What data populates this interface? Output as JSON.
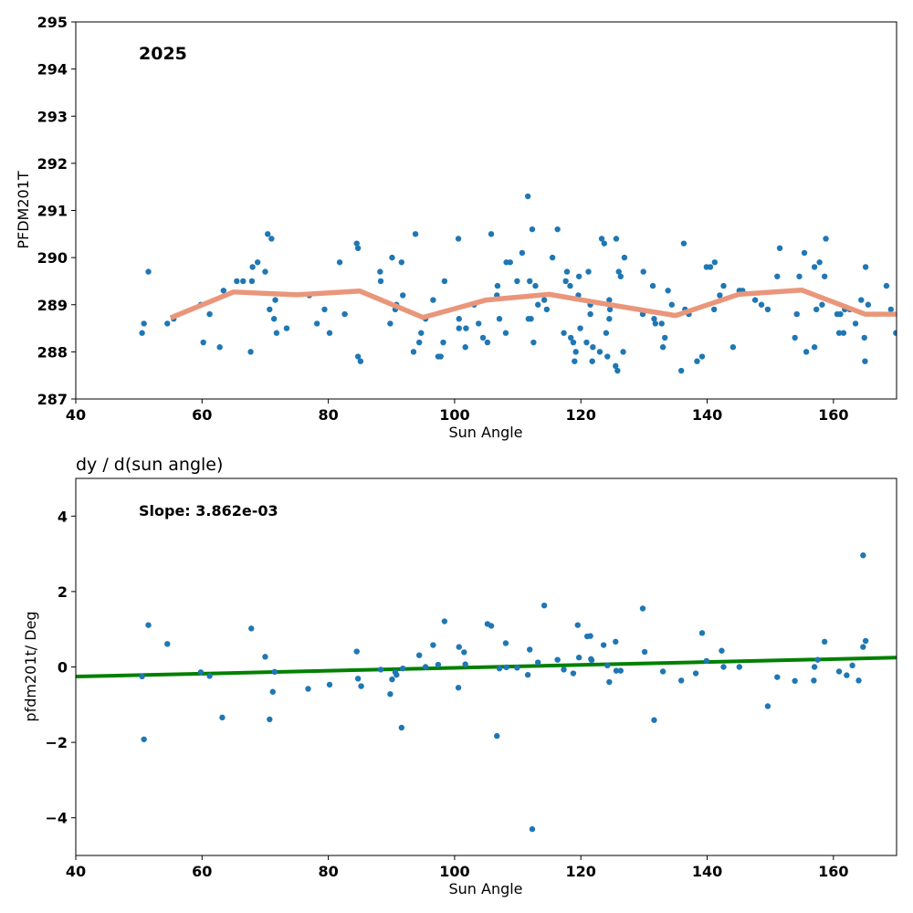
{
  "chart_data": [
    {
      "type": "scatter",
      "title": "",
      "annotation": "2025",
      "xlabel": "Sun Angle",
      "ylabel": "PFDM201T",
      "xlim": [
        40,
        170
      ],
      "ylim": [
        287,
        295
      ],
      "xticks": [
        40,
        60,
        80,
        100,
        120,
        140,
        160
      ],
      "yticks": [
        287,
        288,
        289,
        290,
        291,
        292,
        293,
        294,
        295
      ],
      "grid": false,
      "colors": {
        "points": "#1f77b4",
        "smooth_line": "#e9967a"
      },
      "points": [
        [
          50.5,
          288.4
        ],
        [
          50.8,
          288.6
        ],
        [
          51.5,
          289.7
        ],
        [
          54.5,
          288.6
        ],
        [
          55.5,
          288.7
        ],
        [
          59.8,
          289.0
        ],
        [
          60.2,
          288.2
        ],
        [
          61.2,
          288.8
        ],
        [
          62.8,
          288.1
        ],
        [
          63.4,
          289.3
        ],
        [
          65.5,
          289.5
        ],
        [
          66.5,
          289.5
        ],
        [
          67.7,
          288.0
        ],
        [
          67.9,
          289.5
        ],
        [
          68.0,
          289.8
        ],
        [
          68.8,
          289.9
        ],
        [
          70.0,
          289.7
        ],
        [
          70.4,
          290.5
        ],
        [
          70.7,
          288.9
        ],
        [
          71.0,
          290.4
        ],
        [
          71.4,
          288.7
        ],
        [
          71.6,
          289.1
        ],
        [
          71.8,
          288.4
        ],
        [
          73.4,
          288.5
        ],
        [
          77.0,
          289.2
        ],
        [
          78.2,
          288.6
        ],
        [
          79.4,
          288.9
        ],
        [
          80.2,
          288.4
        ],
        [
          81.8,
          289.9
        ],
        [
          82.6,
          288.8
        ],
        [
          84.5,
          290.3
        ],
        [
          84.7,
          290.2
        ],
        [
          84.7,
          287.9
        ],
        [
          85.1,
          287.8
        ],
        [
          88.2,
          289.7
        ],
        [
          88.3,
          289.5
        ],
        [
          89.8,
          288.6
        ],
        [
          90.1,
          290.0
        ],
        [
          90.6,
          288.9
        ],
        [
          90.8,
          289.0
        ],
        [
          91.6,
          289.9
        ],
        [
          91.8,
          289.2
        ],
        [
          93.5,
          288.0
        ],
        [
          93.8,
          290.5
        ],
        [
          94.4,
          288.2
        ],
        [
          94.7,
          288.4
        ],
        [
          95.4,
          288.7
        ],
        [
          96.6,
          289.1
        ],
        [
          97.4,
          287.9
        ],
        [
          97.8,
          287.9
        ],
        [
          98.2,
          288.2
        ],
        [
          98.4,
          289.5
        ],
        [
          100.6,
          290.4
        ],
        [
          100.7,
          288.7
        ],
        [
          100.7,
          288.5
        ],
        [
          101.7,
          288.1
        ],
        [
          101.8,
          288.5
        ],
        [
          103.1,
          289.0
        ],
        [
          103.8,
          288.6
        ],
        [
          104.5,
          288.3
        ],
        [
          105.2,
          288.2
        ],
        [
          105.8,
          290.5
        ],
        [
          106.7,
          289.2
        ],
        [
          106.8,
          289.4
        ],
        [
          107.1,
          288.7
        ],
        [
          108.1,
          288.4
        ],
        [
          108.2,
          289.9
        ],
        [
          108.8,
          289.9
        ],
        [
          109.9,
          289.5
        ],
        [
          110.7,
          290.1
        ],
        [
          111.6,
          291.3
        ],
        [
          111.7,
          288.7
        ],
        [
          111.9,
          289.5
        ],
        [
          112.1,
          288.7
        ],
        [
          112.3,
          290.6
        ],
        [
          112.5,
          288.2
        ],
        [
          112.8,
          289.4
        ],
        [
          113.2,
          289.0
        ],
        [
          114.2,
          289.1
        ],
        [
          114.6,
          288.9
        ],
        [
          115.5,
          290.0
        ],
        [
          116.3,
          290.6
        ],
        [
          117.3,
          288.4
        ],
        [
          117.6,
          289.5
        ],
        [
          117.8,
          289.7
        ],
        [
          118.3,
          289.4
        ],
        [
          118.4,
          288.3
        ],
        [
          118.8,
          288.2
        ],
        [
          119.0,
          287.8
        ],
        [
          119.2,
          288.0
        ],
        [
          119.6,
          289.2
        ],
        [
          119.7,
          289.6
        ],
        [
          119.9,
          288.5
        ],
        [
          120.9,
          288.2
        ],
        [
          121.2,
          289.7
        ],
        [
          121.5,
          288.8
        ],
        [
          121.5,
          289.0
        ],
        [
          121.8,
          287.8
        ],
        [
          121.9,
          288.1
        ],
        [
          123.0,
          288.0
        ],
        [
          123.3,
          290.4
        ],
        [
          123.7,
          290.3
        ],
        [
          124.0,
          288.4
        ],
        [
          124.2,
          287.9
        ],
        [
          124.5,
          289.1
        ],
        [
          124.5,
          288.7
        ],
        [
          124.6,
          288.9
        ],
        [
          125.5,
          287.7
        ],
        [
          125.6,
          290.4
        ],
        [
          125.8,
          287.6
        ],
        [
          126.0,
          289.7
        ],
        [
          126.3,
          289.6
        ],
        [
          126.7,
          288.0
        ],
        [
          126.9,
          290.0
        ],
        [
          129.8,
          288.8
        ],
        [
          129.9,
          289.7
        ],
        [
          131.4,
          289.4
        ],
        [
          131.6,
          288.7
        ],
        [
          131.8,
          288.6
        ],
        [
          132.8,
          288.6
        ],
        [
          133.0,
          288.1
        ],
        [
          133.3,
          288.3
        ],
        [
          133.8,
          289.3
        ],
        [
          134.4,
          289.0
        ],
        [
          135.9,
          287.6
        ],
        [
          136.3,
          290.3
        ],
        [
          136.5,
          288.9
        ],
        [
          137.1,
          288.8
        ],
        [
          138.4,
          287.8
        ],
        [
          139.2,
          287.9
        ],
        [
          139.9,
          289.8
        ],
        [
          140.5,
          289.8
        ],
        [
          141.1,
          288.9
        ],
        [
          141.2,
          289.9
        ],
        [
          142.0,
          289.2
        ],
        [
          142.6,
          289.4
        ],
        [
          144.1,
          288.1
        ],
        [
          145.1,
          289.3
        ],
        [
          145.6,
          289.3
        ],
        [
          147.6,
          289.1
        ],
        [
          148.6,
          289.0
        ],
        [
          149.6,
          288.9
        ],
        [
          151.1,
          289.6
        ],
        [
          151.5,
          290.2
        ],
        [
          153.9,
          288.3
        ],
        [
          154.2,
          288.8
        ],
        [
          154.6,
          289.6
        ],
        [
          155.4,
          290.1
        ],
        [
          155.7,
          288.0
        ],
        [
          157.0,
          288.1
        ],
        [
          157.0,
          289.8
        ],
        [
          157.3,
          288.9
        ],
        [
          157.8,
          289.9
        ],
        [
          158.2,
          289.0
        ],
        [
          158.6,
          289.6
        ],
        [
          158.8,
          290.4
        ],
        [
          160.6,
          288.8
        ],
        [
          160.9,
          288.4
        ],
        [
          161.1,
          288.8
        ],
        [
          161.6,
          288.4
        ],
        [
          161.8,
          288.9
        ],
        [
          162.6,
          288.9
        ],
        [
          163.5,
          288.6
        ],
        [
          164.4,
          289.1
        ],
        [
          164.9,
          288.3
        ],
        [
          165.0,
          287.8
        ],
        [
          165.1,
          289.8
        ],
        [
          165.5,
          289.0
        ],
        [
          168.4,
          289.4
        ],
        [
          169.1,
          288.9
        ],
        [
          169.9,
          288.4
        ]
      ],
      "smooth_line": [
        [
          55,
          288.72
        ],
        [
          65,
          289.27
        ],
        [
          75,
          289.21
        ],
        [
          85,
          289.29
        ],
        [
          95,
          288.73
        ],
        [
          105,
          289.1
        ],
        [
          115,
          289.22
        ],
        [
          125,
          288.99
        ],
        [
          135,
          288.77
        ],
        [
          145,
          289.22
        ],
        [
          155,
          289.31
        ],
        [
          165,
          288.8
        ],
        [
          170,
          288.8
        ]
      ]
    },
    {
      "type": "scatter",
      "title": "dy / d(sun angle)",
      "annotation": "Slope: 3.862e-03",
      "xlabel": "Sun Angle",
      "ylabel": "pfdm201t/ Deg",
      "xlim": [
        40,
        170
      ],
      "ylim": [
        -5,
        5
      ],
      "xticks": [
        40,
        60,
        80,
        100,
        120,
        140,
        160
      ],
      "yticks": [
        -4,
        -2,
        0,
        2,
        4
      ],
      "ytick_labels": [
        "−4",
        "−2",
        "0",
        "2",
        "4"
      ],
      "grid": false,
      "colors": {
        "points": "#1f77b4",
        "fit_line": "#008000"
      },
      "fit_line": [
        [
          40,
          -0.255
        ],
        [
          170,
          0.247
        ]
      ],
      "points": [
        [
          50.5,
          -0.25
        ],
        [
          50.8,
          -1.92
        ],
        [
          51.5,
          1.11
        ],
        [
          54.5,
          0.61
        ],
        [
          59.8,
          -0.14
        ],
        [
          61.2,
          -0.24
        ],
        [
          63.2,
          -1.34
        ],
        [
          67.8,
          1.02
        ],
        [
          70.0,
          0.27
        ],
        [
          70.7,
          -1.39
        ],
        [
          71.2,
          -0.66
        ],
        [
          71.5,
          -0.13
        ],
        [
          76.8,
          -0.58
        ],
        [
          80.2,
          -0.47
        ],
        [
          84.5,
          0.41
        ],
        [
          84.7,
          -0.31
        ],
        [
          85.2,
          -0.51
        ],
        [
          88.3,
          -0.07
        ],
        [
          89.8,
          -0.72
        ],
        [
          90.1,
          -0.33
        ],
        [
          90.6,
          -0.14
        ],
        [
          90.8,
          -0.21
        ],
        [
          91.6,
          -1.61
        ],
        [
          91.8,
          -0.04
        ],
        [
          94.4,
          0.31
        ],
        [
          95.4,
          0.0
        ],
        [
          96.6,
          0.58
        ],
        [
          97.4,
          0.06
        ],
        [
          98.4,
          1.21
        ],
        [
          100.6,
          -0.55
        ],
        [
          100.7,
          0.53
        ],
        [
          101.5,
          0.39
        ],
        [
          101.7,
          0.07
        ],
        [
          105.2,
          1.14
        ],
        [
          105.8,
          1.09
        ],
        [
          106.7,
          -1.83
        ],
        [
          107.1,
          -0.04
        ],
        [
          108.1,
          0.63
        ],
        [
          108.2,
          -0.01
        ],
        [
          109.9,
          -0.02
        ],
        [
          111.6,
          -0.21
        ],
        [
          111.9,
          0.46
        ],
        [
          112.3,
          -4.3
        ],
        [
          113.2,
          0.12
        ],
        [
          114.2,
          1.63
        ],
        [
          116.3,
          0.19
        ],
        [
          117.3,
          -0.07
        ],
        [
          118.8,
          -0.17
        ],
        [
          119.5,
          1.11
        ],
        [
          119.7,
          0.25
        ],
        [
          121.0,
          0.81
        ],
        [
          121.5,
          0.82
        ],
        [
          121.6,
          0.21
        ],
        [
          121.7,
          0.18
        ],
        [
          123.6,
          0.58
        ],
        [
          124.2,
          0.04
        ],
        [
          124.5,
          -0.4
        ],
        [
          125.5,
          0.67
        ],
        [
          125.6,
          -0.1
        ],
        [
          126.3,
          -0.1
        ],
        [
          129.8,
          1.55
        ],
        [
          130.1,
          0.4
        ],
        [
          131.6,
          -1.41
        ],
        [
          133.0,
          -0.12
        ],
        [
          135.9,
          -0.36
        ],
        [
          138.2,
          -0.17
        ],
        [
          139.2,
          0.9
        ],
        [
          139.9,
          0.16
        ],
        [
          142.3,
          0.43
        ],
        [
          142.6,
          0.0
        ],
        [
          145.1,
          0.0
        ],
        [
          149.6,
          -1.04
        ],
        [
          151.1,
          -0.27
        ],
        [
          153.9,
          -0.37
        ],
        [
          156.9,
          -0.36
        ],
        [
          157.0,
          0.0
        ],
        [
          157.5,
          0.19
        ],
        [
          158.6,
          0.67
        ],
        [
          160.9,
          -0.12
        ],
        [
          162.1,
          -0.22
        ],
        [
          163.0,
          0.04
        ],
        [
          164.0,
          -0.36
        ],
        [
          164.7,
          2.96
        ],
        [
          164.7,
          0.53
        ],
        [
          165.1,
          0.69
        ]
      ]
    }
  ]
}
